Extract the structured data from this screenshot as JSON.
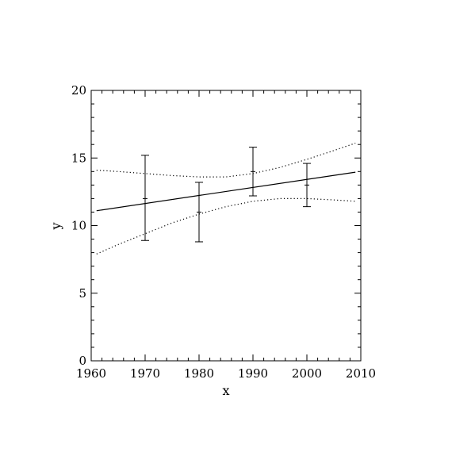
{
  "chart_data": {
    "type": "line",
    "title": "",
    "xlabel": "x",
    "ylabel": "y",
    "xlim": [
      1960,
      2010
    ],
    "ylim": [
      0,
      20
    ],
    "x_ticks": [
      1960,
      1970,
      1980,
      1990,
      2000,
      2010
    ],
    "y_ticks": [
      0,
      5,
      10,
      15,
      20
    ],
    "grid": false,
    "legend": "none",
    "error_bars": [
      {
        "x": 1970,
        "y_low": 8.9,
        "y_high": 15.2,
        "y_mid": 12.0
      },
      {
        "x": 1980,
        "y_low": 8.8,
        "y_high": 13.2,
        "y_mid": 11.0
      },
      {
        "x": 1990,
        "y_low": 12.2,
        "y_high": 15.8,
        "y_mid": 14.0
      },
      {
        "x": 2000,
        "y_low": 11.4,
        "y_high": 14.6,
        "y_mid": 13.0
      }
    ],
    "fit_line": {
      "x": [
        1961,
        2009
      ],
      "y": [
        11.1,
        13.95
      ]
    },
    "upper_band": {
      "x": [
        1961,
        1965,
        1970,
        1975,
        1980,
        1985,
        1990,
        1995,
        2000,
        2005,
        2009
      ],
      "y": [
        14.1,
        14.0,
        13.85,
        13.7,
        13.6,
        13.6,
        13.85,
        14.3,
        14.9,
        15.55,
        16.1
      ]
    },
    "lower_band": {
      "x": [
        1961,
        1965,
        1970,
        1975,
        1980,
        1985,
        1990,
        1995,
        2000,
        2005,
        2009
      ],
      "y": [
        7.9,
        8.6,
        9.4,
        10.2,
        10.85,
        11.4,
        11.8,
        12.0,
        12.0,
        11.9,
        11.8
      ]
    },
    "colors": {
      "line": "#000000",
      "background": "#ffffff"
    }
  }
}
